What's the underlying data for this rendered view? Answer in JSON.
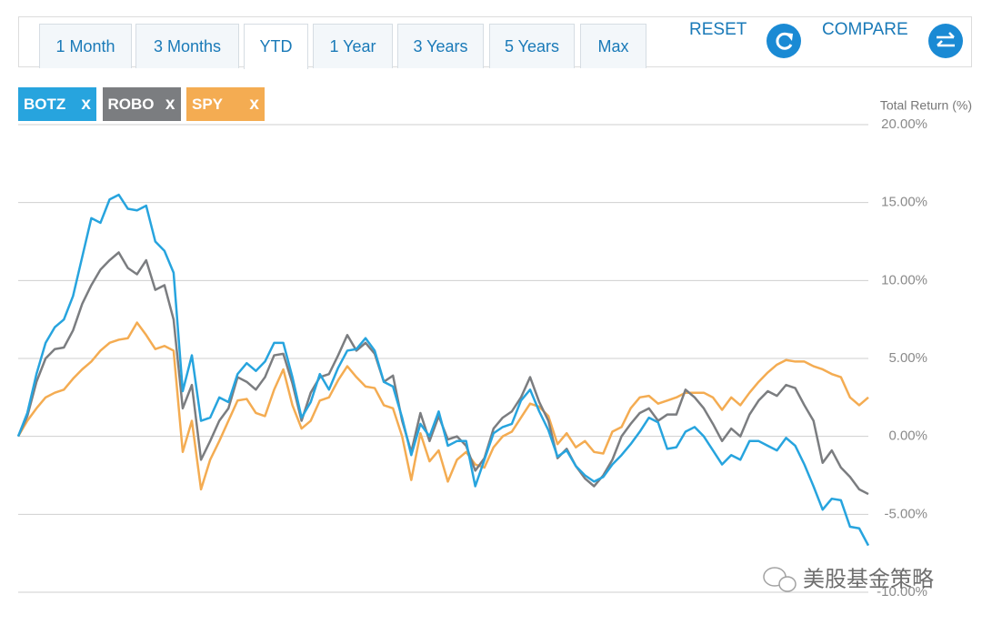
{
  "controls": {
    "ranges": [
      "1 Month",
      "3 Months",
      "YTD",
      "1 Year",
      "3 Years",
      "5 Years",
      "Max"
    ],
    "active": 2,
    "reset": "RESET",
    "compare": "COMPARE",
    "remove": "x"
  },
  "watermark": "美股基金策略",
  "chart_data": {
    "type": "line",
    "y_label": "Total Return (%)",
    "ylim": [
      -10,
      20
    ],
    "yticks": [
      {
        "value": -10,
        "label": "-10.00%"
      },
      {
        "value": -5,
        "label": "-5.00%"
      },
      {
        "value": 0,
        "label": "0.00%"
      },
      {
        "value": 5,
        "label": "5.00%"
      },
      {
        "value": 10,
        "label": "10.00%"
      },
      {
        "value": 15,
        "label": "15.00%"
      },
      {
        "value": 20,
        "label": "20.00%"
      }
    ],
    "grid": true,
    "series": [
      {
        "name": "BOTZ",
        "color": "#27a4de",
        "values": [
          0,
          1.5,
          4,
          6,
          7,
          7.5,
          9,
          11.5,
          14,
          13.7,
          15.2,
          15.5,
          14.6,
          14.5,
          14.8,
          12.5,
          11.9,
          10.5,
          2.9,
          5.2,
          1,
          1.2,
          2.5,
          2.2,
          4,
          4.7,
          4.2,
          4.8,
          6,
          6,
          3.8,
          1.2,
          2.2,
          4,
          3,
          4.4,
          5.5,
          5.6,
          6.3,
          5.5,
          3.5,
          3.2,
          1.2,
          -1.2,
          0.8,
          0,
          1.6,
          -0.6,
          -0.3,
          -0.3,
          -3.2,
          -1.5,
          0.2,
          0.6,
          0.8,
          2.3,
          3,
          1.6,
          0.4,
          -1.3,
          -0.9,
          -1.9,
          -2.5,
          -2.9,
          -2.6,
          -1.8,
          -1.2,
          -0.5,
          0.3,
          1.2,
          0.9,
          -0.8,
          -0.7,
          0.3,
          0.6,
          0,
          -0.9,
          -1.8,
          -1.2,
          -1.5,
          -0.3,
          -0.3,
          -0.6,
          -0.9,
          -0.1,
          -0.6,
          -1.8,
          -3.2,
          -4.7,
          -4,
          -4.1,
          -5.8,
          -5.9,
          -7
        ]
      },
      {
        "name": "ROBO",
        "color": "#7b7d80",
        "values": [
          0,
          1.3,
          3.5,
          5,
          5.6,
          5.7,
          6.8,
          8.5,
          9.7,
          10.7,
          11.3,
          11.8,
          10.8,
          10.4,
          11.3,
          9.4,
          9.7,
          7.5,
          1.8,
          3.3,
          -1.5,
          -0.3,
          1,
          1.8,
          3.8,
          3.5,
          3,
          3.8,
          5.2,
          5.3,
          3.4,
          1,
          2.8,
          3.8,
          4,
          5.2,
          6.5,
          5.5,
          6,
          5.3,
          3.5,
          3.9,
          1,
          -1,
          1.5,
          -0.3,
          1.3,
          -0.2,
          0,
          -0.6,
          -2.2,
          -1.4,
          0.5,
          1.2,
          1.6,
          2.5,
          3.8,
          2.2,
          1,
          -1.4,
          -0.8,
          -1.9,
          -2.7,
          -3.2,
          -2.5,
          -1.5,
          0,
          0.8,
          1.5,
          1.8,
          1,
          1.4,
          1.4,
          3,
          2.5,
          1.8,
          0.8,
          -0.3,
          0.5,
          0,
          1.4,
          2.3,
          2.9,
          2.6,
          3.3,
          3.1,
          2,
          1,
          -1.7,
          -0.9,
          -2,
          -2.6,
          -3.4,
          -3.7
        ]
      },
      {
        "name": "SPY",
        "color": "#f4ac52",
        "values": [
          0,
          1,
          1.8,
          2.5,
          2.8,
          3,
          3.7,
          4.3,
          4.8,
          5.5,
          6,
          6.2,
          6.3,
          7.3,
          6.5,
          5.6,
          5.8,
          5.5,
          -1,
          1,
          -3.4,
          -1.5,
          -0.3,
          1,
          2.3,
          2.4,
          1.5,
          1.3,
          3,
          4.3,
          2,
          0.5,
          1,
          2.3,
          2.5,
          3.6,
          4.5,
          3.8,
          3.2,
          3.1,
          2,
          1.8,
          0,
          -2.8,
          0.2,
          -1.6,
          -0.9,
          -2.9,
          -1.5,
          -1,
          -1.8,
          -2,
          -0.7,
          0,
          0.3,
          1.2,
          2.1,
          1.9,
          1.3,
          -0.5,
          0.2,
          -0.7,
          -0.3,
          -1,
          -1.1,
          0.3,
          0.6,
          1.8,
          2.5,
          2.6,
          2.1,
          2.3,
          2.5,
          2.8,
          2.8,
          2.8,
          2.5,
          1.7,
          2.5,
          2,
          2.8,
          3.5,
          4.1,
          4.6,
          4.9,
          4.8,
          4.8,
          4.5,
          4.3,
          4,
          3.8,
          2.5,
          2,
          2.5
        ]
      }
    ]
  }
}
